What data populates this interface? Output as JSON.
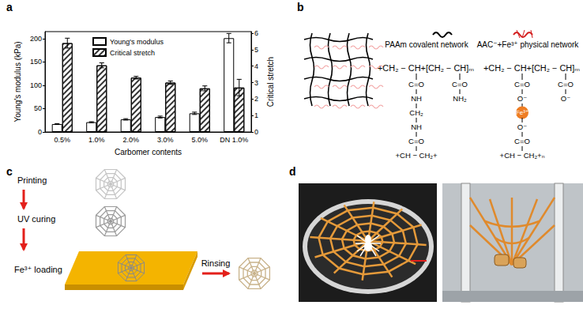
{
  "chart_data": {
    "type": "bar",
    "categories": [
      "0.5%",
      "1.0%",
      "2.0%",
      "3.0%",
      "5.0%",
      "DN 1.0%"
    ],
    "xlabel": "Carbomer contents",
    "ylabel": "Young's modulus (kPa)",
    "y2label": "Critical stretch",
    "ylim": [
      0,
      215
    ],
    "yticks": [
      0,
      50,
      100,
      150,
      200
    ],
    "y2lim": [
      0,
      6.1
    ],
    "y2ticks": [
      0,
      1,
      2,
      3,
      4,
      5,
      6
    ],
    "legend": "top",
    "series": [
      {
        "name": "Young's modulus",
        "color": "#ffffff",
        "values": [
          17,
          21,
          27,
          32,
          40,
          201
        ],
        "errors": [
          1,
          1,
          1.5,
          2,
          2.5,
          10
        ]
      },
      {
        "name": "Critical stretch",
        "color": "#ffffff",
        "axis": "y2",
        "values": [
          5.4,
          4.05,
          3.3,
          3.0,
          2.65,
          2.7
        ],
        "errors": [
          0.3,
          0.15,
          0.08,
          0.1,
          0.15,
          0.5
        ]
      }
    ]
  },
  "figure": {
    "panel_labels": [
      "a",
      "b",
      "c",
      "d"
    ],
    "panel_b": {
      "networks": [
        {
          "title": "PAAm covalent network",
          "backbone": "+CH₂ − CH+[CH₂ − CH]ₘ",
          "branch_1": [
            "C=O",
            "NH",
            "CH₂",
            "NH",
            "C=O",
            "+CH − CH₂+"
          ],
          "branch_2": [
            "C=O",
            "NH₂"
          ]
        },
        {
          "title": "AAC⁻+Fe³⁺ physical network",
          "backbone": "+CH₂ − CH+[CH₂ − CH]ₘ",
          "branch_1": [
            "C=O",
            "O⁻",
            "Fe³⁺",
            "O⁻",
            "C=O",
            "+CH − CH₂+ₙ"
          ],
          "branch_2": [
            "C=O",
            "O⁻"
          ]
        }
      ]
    },
    "panel_c": {
      "steps": [
        "Printing",
        "UV curing",
        "Fe³⁺ loading"
      ],
      "final_step": "Rinsing"
    }
  }
}
